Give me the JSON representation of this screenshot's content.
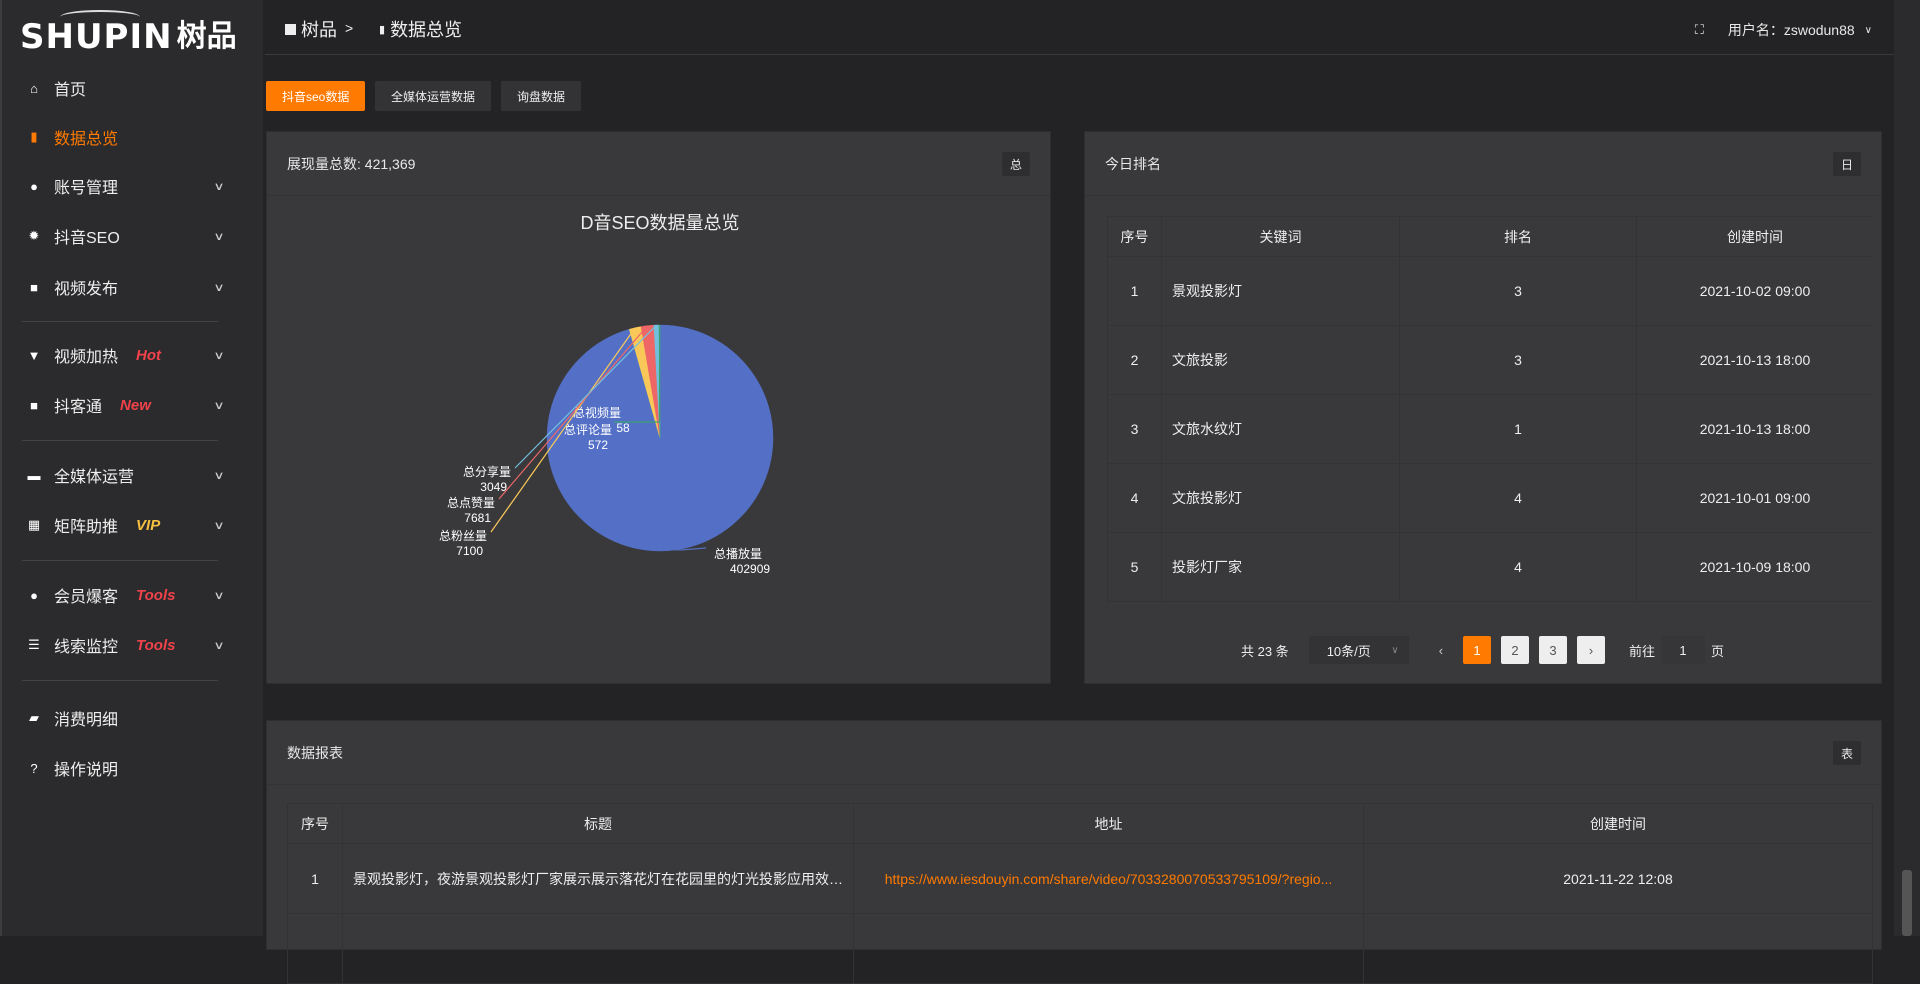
{
  "brand": {
    "en": "SHUPIN",
    "cn": "树品"
  },
  "sidebar": {
    "items": [
      {
        "label": "首页",
        "icon": "home-icon",
        "glyph": "⌂"
      },
      {
        "label": "数据总览",
        "icon": "bar-chart-icon",
        "glyph": "▮",
        "active": true
      },
      {
        "label": "账号管理",
        "icon": "user-icon",
        "glyph": "●",
        "chev": true
      },
      {
        "label": "抖音SEO",
        "icon": "gear-icon",
        "glyph": "✹",
        "chev": true
      },
      {
        "label": "视频发布",
        "icon": "camera-icon",
        "glyph": "■",
        "chev": true
      },
      {
        "label": "视频加热",
        "icon": "sign-icon",
        "glyph": "▼",
        "chev": true,
        "badge": "Hot",
        "badge_color": "#f0424b"
      },
      {
        "label": "抖客通",
        "icon": "chat-icon",
        "glyph": "■",
        "chev": true,
        "badge": "New",
        "badge_color": "#f0424b"
      },
      {
        "label": "全媒体运营",
        "icon": "monitor-icon",
        "glyph": "▬",
        "chev": true
      },
      {
        "label": "矩阵助推",
        "icon": "grid-icon",
        "glyph": "▦",
        "chev": true,
        "badge": "VIP",
        "badge_color": "#f5c042"
      },
      {
        "label": "会员爆客",
        "icon": "user-icon",
        "glyph": "●",
        "chev": true,
        "badge": "Tools",
        "badge_color": "#f0424b"
      },
      {
        "label": "线索监控",
        "icon": "sliders-icon",
        "glyph": "☰",
        "chev": true,
        "badge": "Tools",
        "badge_color": "#f0424b"
      },
      {
        "label": "消费明细",
        "icon": "wallet-icon",
        "glyph": "▰"
      },
      {
        "label": "操作说明",
        "icon": "help-icon",
        "glyph": "?"
      }
    ]
  },
  "header": {
    "breadcrumb": [
      "树品",
      "数据总览"
    ],
    "separator": ">",
    "username": "用户名：zswodun88"
  },
  "tabs": [
    {
      "label": "抖音seo数据",
      "active": true
    },
    {
      "label": "全媒体运营数据"
    },
    {
      "label": "询盘数据"
    }
  ],
  "overview": {
    "title": "展现量总数: 421,369",
    "tag": "总"
  },
  "chart_data": {
    "type": "pie",
    "title": "D音SEO数据量总览",
    "legend_position": "bottom",
    "series": [
      {
        "name": "总播放量",
        "value": 402909,
        "color": "#5470c6"
      },
      {
        "name": "总视频量",
        "value": 58,
        "color": "#91cc75"
      },
      {
        "name": "总粉丝量",
        "value": 7100,
        "color": "#fac858"
      },
      {
        "name": "总点赞量",
        "value": 7681,
        "color": "#ee6666"
      },
      {
        "name": "总分享量",
        "value": 3049,
        "color": "#73c0de"
      },
      {
        "name": "总评论量",
        "value": 572,
        "color": "#3ba272"
      }
    ]
  },
  "ranking": {
    "title": "今日排名",
    "tag": "日",
    "columns": [
      "序号",
      "关键词",
      "排名",
      "创建时间"
    ],
    "rows": [
      [
        "1",
        "景观投影灯",
        "3",
        "2021-10-02 09:00"
      ],
      [
        "2",
        "文旅投影",
        "3",
        "2021-10-13 18:00"
      ],
      [
        "3",
        "文旅水纹灯",
        "1",
        "2021-10-13 18:00"
      ],
      [
        "4",
        "文旅投影灯",
        "4",
        "2021-10-01 09:00"
      ],
      [
        "5",
        "投影灯厂家",
        "4",
        "2021-10-09 18:00"
      ]
    ],
    "pagination": {
      "total": "共 23 条",
      "page_size": "10条/页",
      "pages": [
        "1",
        "2",
        "3"
      ],
      "current": "1",
      "goto_label": "前往",
      "goto_value": "1",
      "page_unit": "页"
    }
  },
  "report": {
    "title": "数据报表",
    "tag": "表",
    "columns": [
      "序号",
      "标题",
      "地址",
      "创建时间"
    ],
    "rows": [
      [
        "1",
        "景观投影灯，夜游景观投影灯厂家展示展示落花灯在花园里的灯光投影应用效果 #",
        "https://www.iesdouyin.com/share/video/7033280070533795109/?regio...",
        "2021-11-22 12:08"
      ]
    ]
  },
  "colors": {
    "accent": "#ff7a00",
    "link": "#ff7a00"
  }
}
